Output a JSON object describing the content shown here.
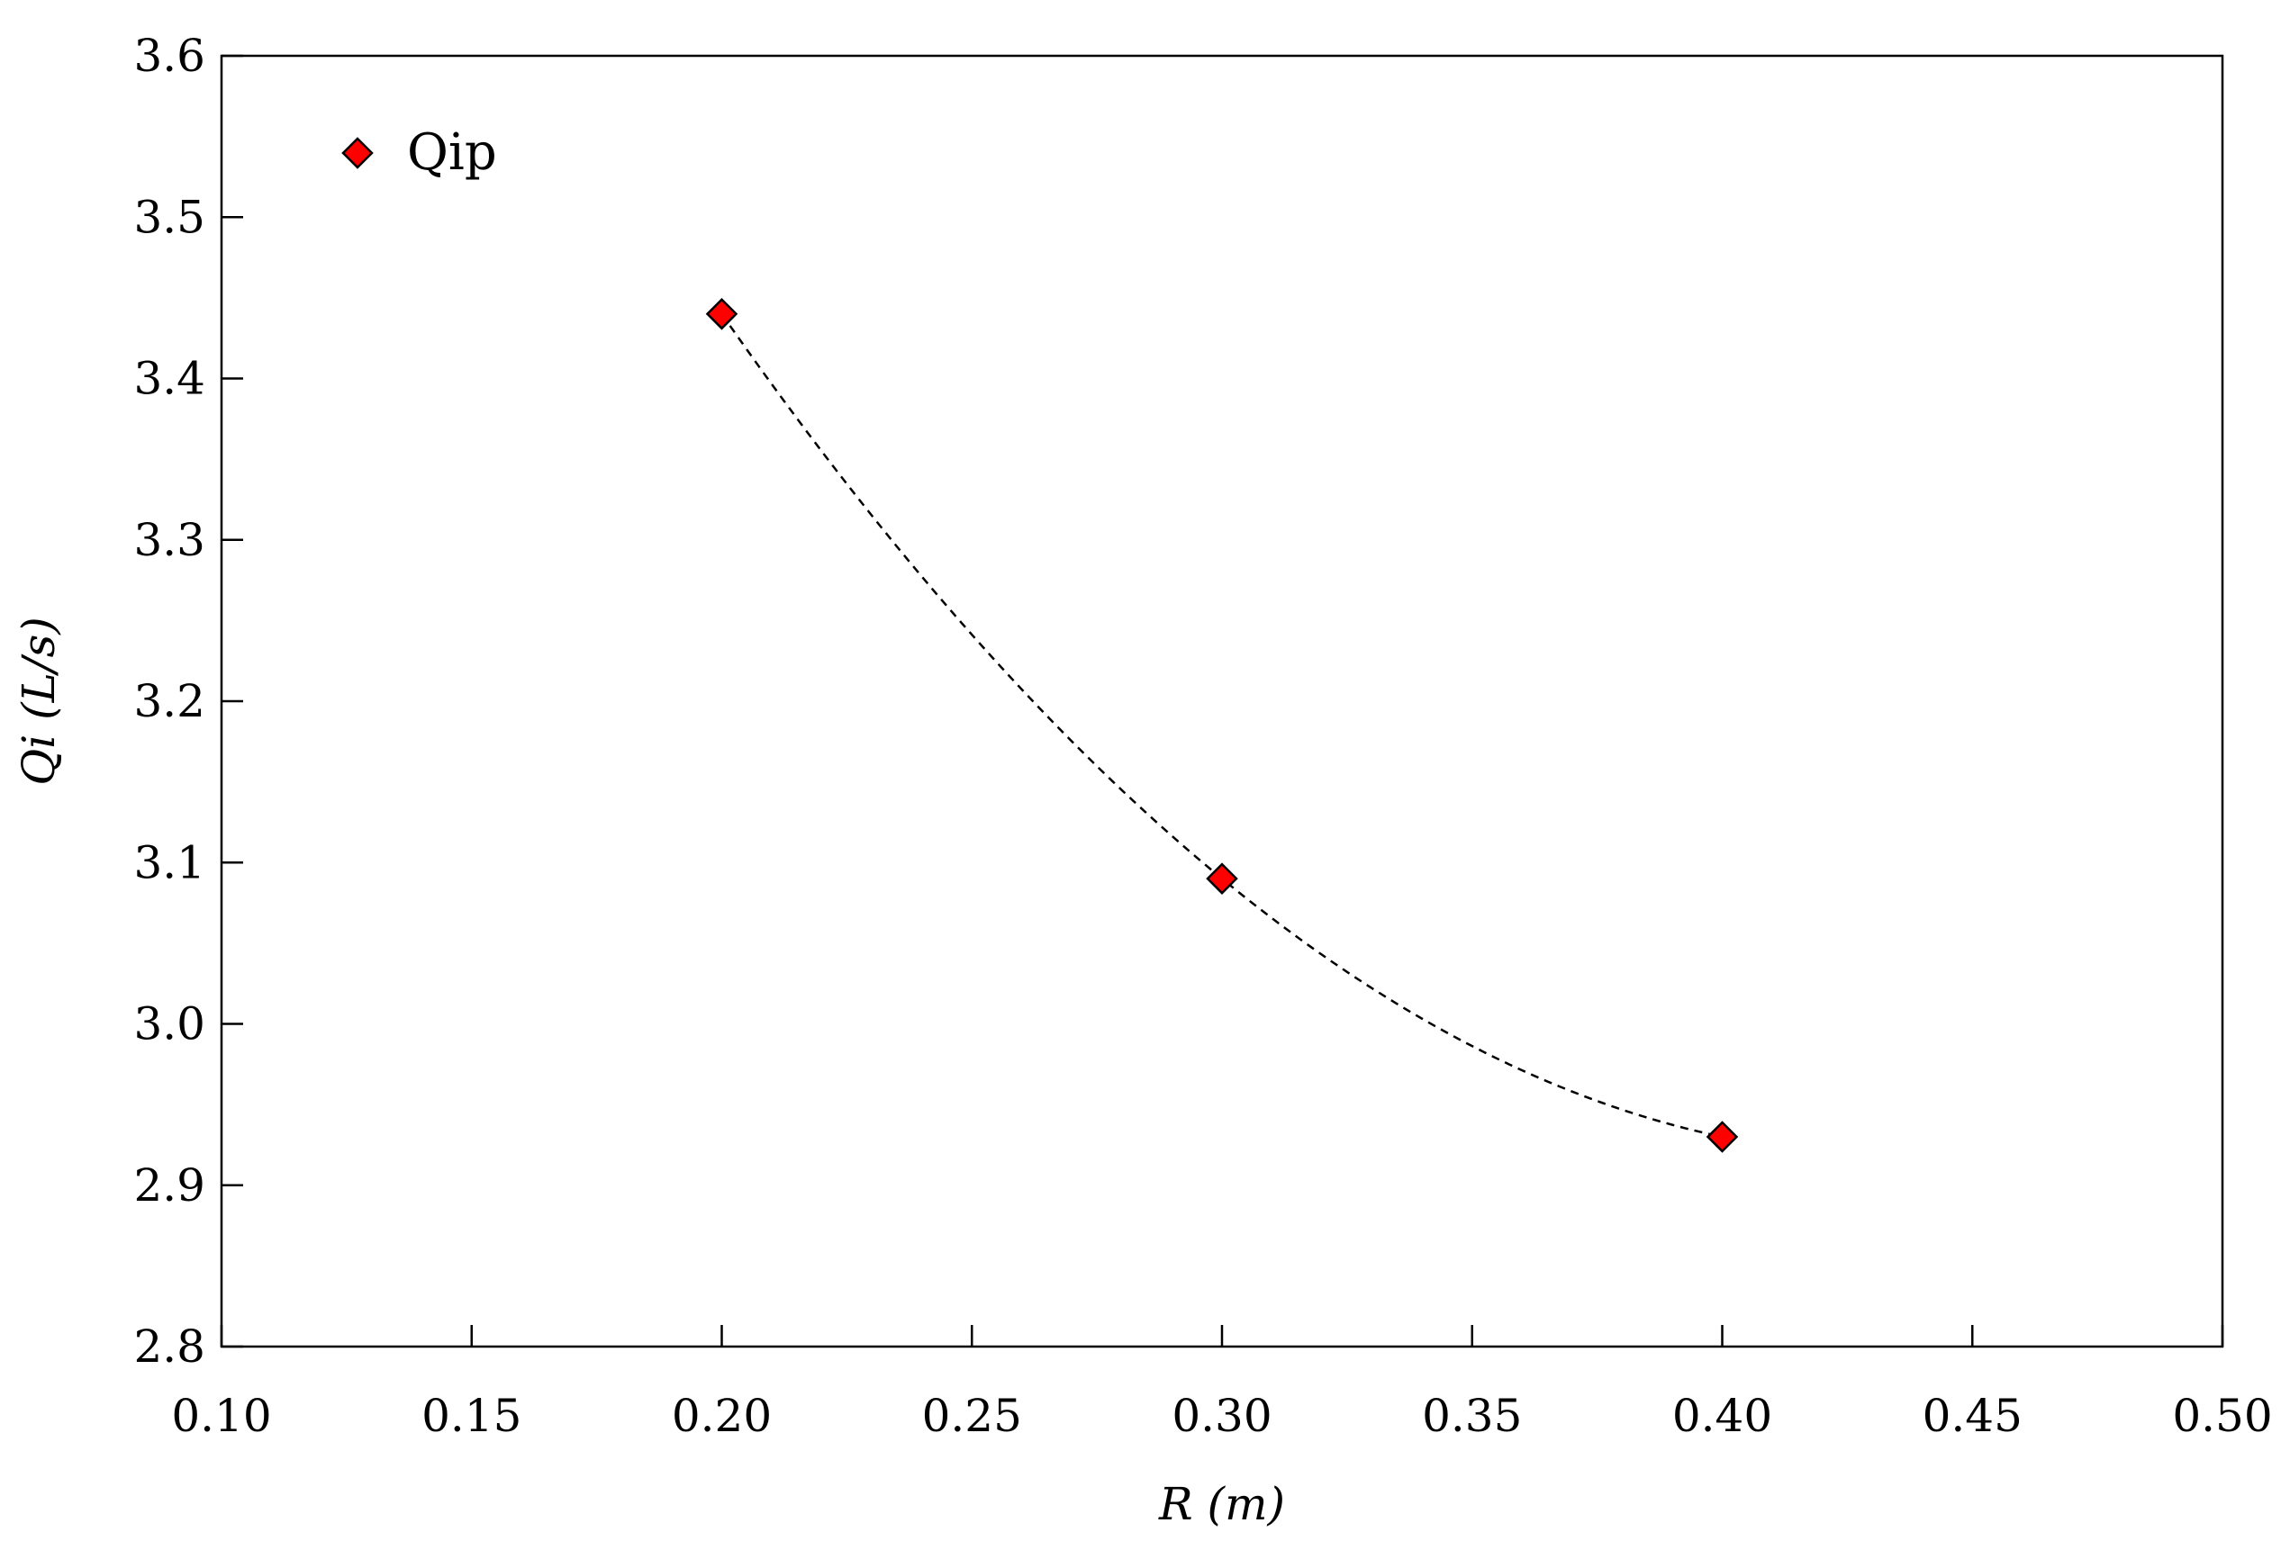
{
  "chart_data": {
    "type": "scatter",
    "title": "",
    "xlabel": "R (m)",
    "ylabel": "Qi (L/s)",
    "xlim": [
      0.1,
      0.5
    ],
    "ylim": [
      2.8,
      3.6
    ],
    "x_ticks": [
      "0.10",
      "0.15",
      "0.20",
      "0.25",
      "0.30",
      "0.35",
      "0.40",
      "0.45",
      "0.50"
    ],
    "y_ticks": [
      "2.8",
      "2.9",
      "3.0",
      "3.1",
      "3.2",
      "3.3",
      "3.4",
      "3.5",
      "3.6"
    ],
    "grid": false,
    "legend_position": "top-left",
    "series": [
      {
        "name": "Qip",
        "marker": "diamond",
        "color": "#ff0000",
        "edge_color": "#000000",
        "x": [
          0.2,
          0.3,
          0.4
        ],
        "y": [
          3.44,
          3.09,
          2.93
        ]
      }
    ],
    "trendline": {
      "style": "dashed",
      "color": "#000000",
      "type": "polynomial"
    }
  }
}
